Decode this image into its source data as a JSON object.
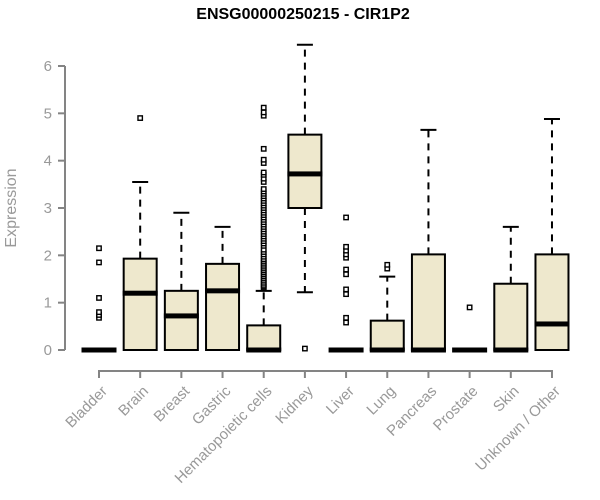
{
  "figure": {
    "title": "ENSG00000250215 - CIR1P2",
    "ylabel": "Expression"
  },
  "chart_data": {
    "type": "boxplot",
    "title": "ENSG00000250215 - CIR1P2",
    "xlabel": "",
    "ylabel": "Expression",
    "ylim": [
      0,
      6
    ],
    "yticks": [
      0,
      1,
      2,
      3,
      4,
      5,
      6
    ],
    "grid": false,
    "legend": "none",
    "colors": {
      "box_fill": "#EEE8CD",
      "box_stroke": "#000000",
      "median": "#000000",
      "outlier_fill": "#ffffff",
      "axis_line": "#848484",
      "tick_label": "#999999",
      "title": "#000000"
    },
    "categories": [
      "Bladder",
      "Brain",
      "Breast",
      "Gastric",
      "Hematopoietic cells",
      "Kidney",
      "Liver",
      "Lung",
      "Pancreas",
      "Prostate",
      "Skin",
      "Unknown / Other"
    ],
    "boxes": [
      {
        "name": "Bladder",
        "low": 0,
        "q1": 0,
        "median": 0,
        "q3": 0,
        "high": 0,
        "outliers": [
          0.68,
          0.74,
          0.8,
          1.1,
          1.85,
          2.15
        ]
      },
      {
        "name": "Brain",
        "low": 0,
        "q1": 0,
        "median": 1.2,
        "q3": 1.93,
        "high": 3.55,
        "outliers": [
          4.9
        ]
      },
      {
        "name": "Breast",
        "low": 0,
        "q1": 0,
        "median": 0.72,
        "q3": 1.25,
        "high": 2.9,
        "outliers": []
      },
      {
        "name": "Gastric",
        "low": 0,
        "q1": 0,
        "median": 1.25,
        "q3": 1.82,
        "high": 2.6,
        "outliers": []
      },
      {
        "name": "Hematopoietic cells",
        "low": 0,
        "q1": 0,
        "median": 0,
        "q3": 0.52,
        "high": 1.25,
        "outliers": [
          1.3,
          1.33,
          1.36,
          1.4,
          1.44,
          1.48,
          1.52,
          1.56,
          1.6,
          1.64,
          1.68,
          1.72,
          1.76,
          1.8,
          1.84,
          1.88,
          1.92,
          1.97,
          2.02,
          2.07,
          2.12,
          2.2,
          2.25,
          2.3,
          2.35,
          2.4,
          2.45,
          2.5,
          2.55,
          2.6,
          2.65,
          2.7,
          2.75,
          2.8,
          2.85,
          2.9,
          2.95,
          3.0,
          3.05,
          3.1,
          3.15,
          3.2,
          3.25,
          3.3,
          3.35,
          3.4,
          3.55,
          3.62,
          3.7,
          3.75,
          3.95,
          4.02,
          4.25,
          4.95,
          5.02,
          5.12
        ]
      },
      {
        "name": "Kidney",
        "low": 1.22,
        "q1": 3.0,
        "median": 3.72,
        "q3": 4.55,
        "high": 6.45,
        "outliers": [
          0.03
        ]
      },
      {
        "name": "Liver",
        "low": 0,
        "q1": 0,
        "median": 0,
        "q3": 0,
        "high": 0,
        "outliers": [
          0.58,
          0.68,
          1.18,
          1.28,
          1.6,
          1.7,
          1.95,
          2.02,
          2.1,
          2.18,
          2.8
        ]
      },
      {
        "name": "Lung",
        "low": 0,
        "q1": 0,
        "median": 0,
        "q3": 0.62,
        "high": 1.55,
        "outliers": [
          1.72,
          1.8
        ]
      },
      {
        "name": "Pancreas",
        "low": 0,
        "q1": 0,
        "median": 0,
        "q3": 2.02,
        "high": 4.65,
        "outliers": []
      },
      {
        "name": "Prostate",
        "low": 0,
        "q1": 0,
        "median": 0,
        "q3": 0,
        "high": 0,
        "outliers": [
          0.9
        ]
      },
      {
        "name": "Skin",
        "low": 0,
        "q1": 0,
        "median": 0,
        "q3": 1.4,
        "high": 2.6,
        "outliers": []
      },
      {
        "name": "Unknown / Other",
        "low": 0,
        "q1": 0,
        "median": 0.55,
        "q3": 2.02,
        "high": 4.88,
        "outliers": []
      }
    ]
  }
}
